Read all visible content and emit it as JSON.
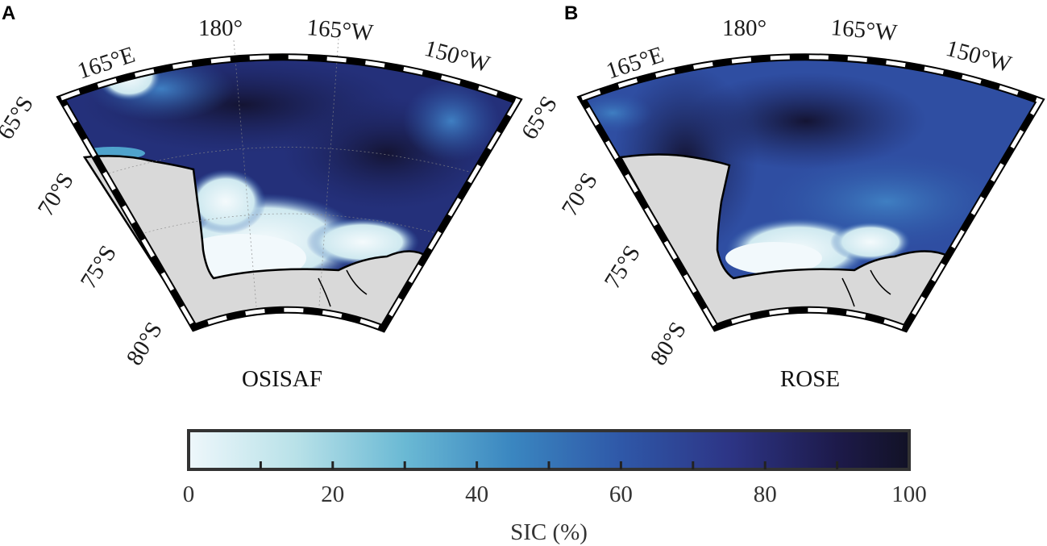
{
  "panels": [
    {
      "letter": "A",
      "title": "OSISAF",
      "lon_labels": [
        "165°E",
        "180°",
        "165°W",
        "150°W"
      ],
      "lat_labels": [
        "65°S",
        "70°S",
        "75°S",
        "80°S"
      ]
    },
    {
      "letter": "B",
      "title": "ROSE",
      "lon_labels": [
        "165°E",
        "180°",
        "165°W",
        "150°W"
      ],
      "lat_labels": [
        "65°S",
        "70°S",
        "75°S",
        "80°S"
      ]
    }
  ],
  "colorbar": {
    "label": "SIC (%)",
    "min": 0,
    "max": 100,
    "tick_labels": [
      "0",
      "20",
      "40",
      "60",
      "80",
      "100"
    ],
    "minor_ticks": [
      10,
      20,
      30,
      40,
      50,
      60,
      70,
      80,
      90
    ],
    "colors": [
      "#eef7fb",
      "#9ed3e0",
      "#4fa3cc",
      "#2e5fae",
      "#2b3a8a",
      "#1c1c4a",
      "#121226"
    ]
  },
  "colors": {
    "land": "#d9d9d9",
    "coast": "#000000"
  }
}
